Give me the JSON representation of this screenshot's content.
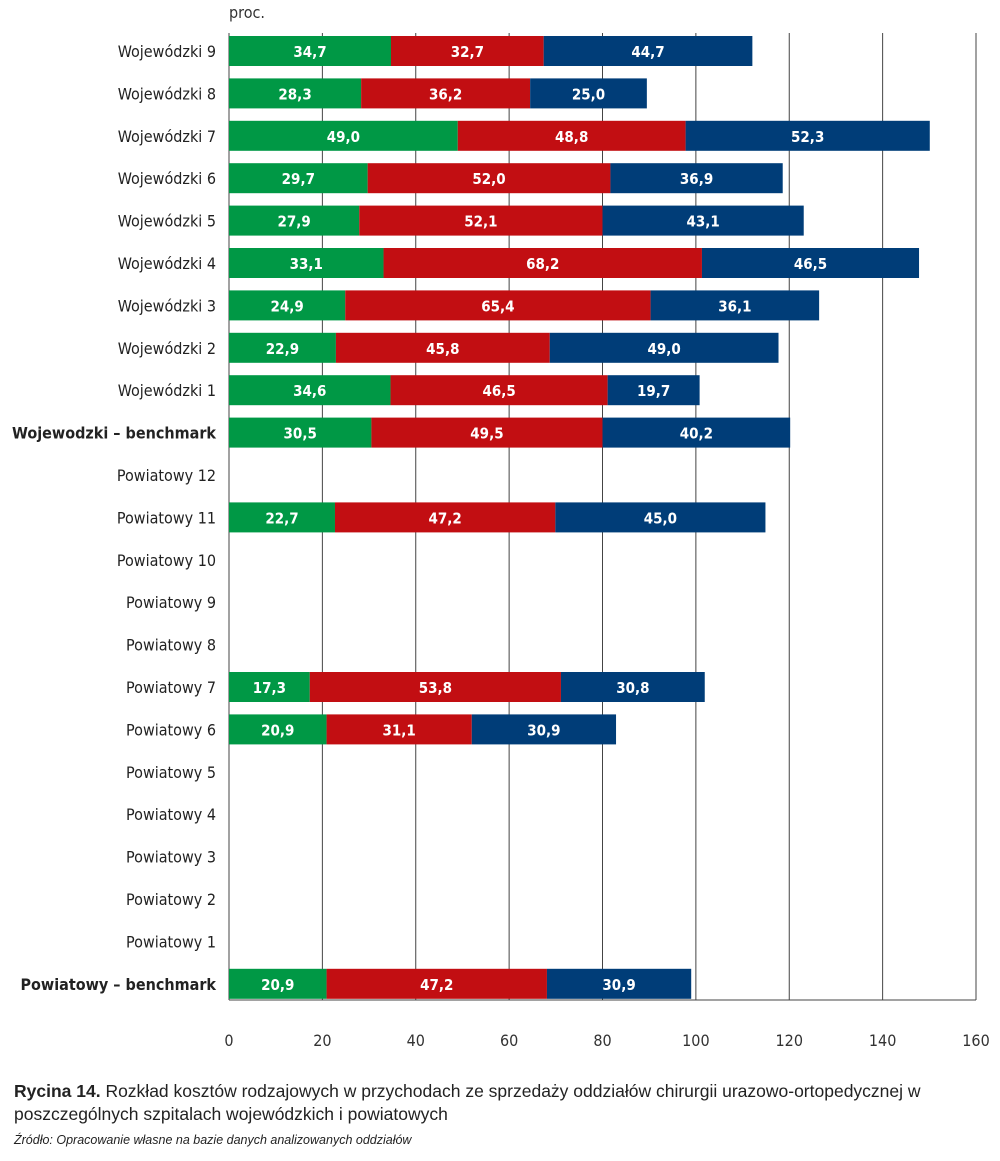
{
  "chart_data": {
    "type": "bar",
    "orientation": "horizontal",
    "stacked": true,
    "ylabel": "proc.",
    "xlim": [
      0,
      160
    ],
    "xticks": [
      0,
      20,
      40,
      60,
      80,
      100,
      120,
      140,
      160
    ],
    "grid": true,
    "categories": [
      "Wojewódzki 9",
      "Wojewódzki 8",
      "Wojewódzki 7",
      "Wojewódzki 6",
      "Wojewódzki 5",
      "Wojewódzki 4",
      "Wojewódzki 3",
      "Wojewódzki 2",
      "Wojewódzki 1",
      "Wojewodzki – benchmark",
      "Powiatowy 12",
      "Powiatowy 11",
      "Powiatowy 10",
      "Powiatowy 9",
      "Powiatowy 8",
      "Powiatowy 7",
      "Powiatowy 6",
      "Powiatowy 5",
      "Powiatowy 4",
      "Powiatowy 3",
      "Powiatowy 2",
      "Powiatowy 1",
      "Powiatowy – benchmark"
    ],
    "bold_categories": [
      "Wojewodzki – benchmark",
      "Powiatowy – benchmark"
    ],
    "series": [
      {
        "color": "#009845",
        "values": [
          34.7,
          28.3,
          49.0,
          29.7,
          27.9,
          33.1,
          24.9,
          22.9,
          34.6,
          30.5,
          null,
          22.7,
          null,
          null,
          null,
          17.3,
          20.9,
          null,
          null,
          null,
          null,
          null,
          20.9
        ]
      },
      {
        "color": "#c20e12",
        "values": [
          32.7,
          36.2,
          48.8,
          52.0,
          52.1,
          68.2,
          65.4,
          45.8,
          46.5,
          49.5,
          null,
          47.2,
          null,
          null,
          null,
          53.8,
          31.1,
          null,
          null,
          null,
          null,
          null,
          47.2
        ]
      },
      {
        "color": "#003d78",
        "values": [
          44.7,
          25.0,
          52.3,
          36.9,
          43.1,
          46.5,
          36.1,
          49.0,
          19.7,
          40.2,
          null,
          45.0,
          null,
          null,
          null,
          30.8,
          30.9,
          null,
          null,
          null,
          null,
          null,
          30.9
        ]
      }
    ]
  },
  "caption": {
    "label": "Rycina 14.",
    "text": " Rozkład kosztów rodzajowych w przychodach ze sprzedaży oddziałów chirurgii urazowo-ortopedycznej w poszczególnych szpitalach wojewódzkich i powiatowych",
    "source": "Źródło: Opracowanie własne na bazie danych analizowanych oddziałów"
  }
}
